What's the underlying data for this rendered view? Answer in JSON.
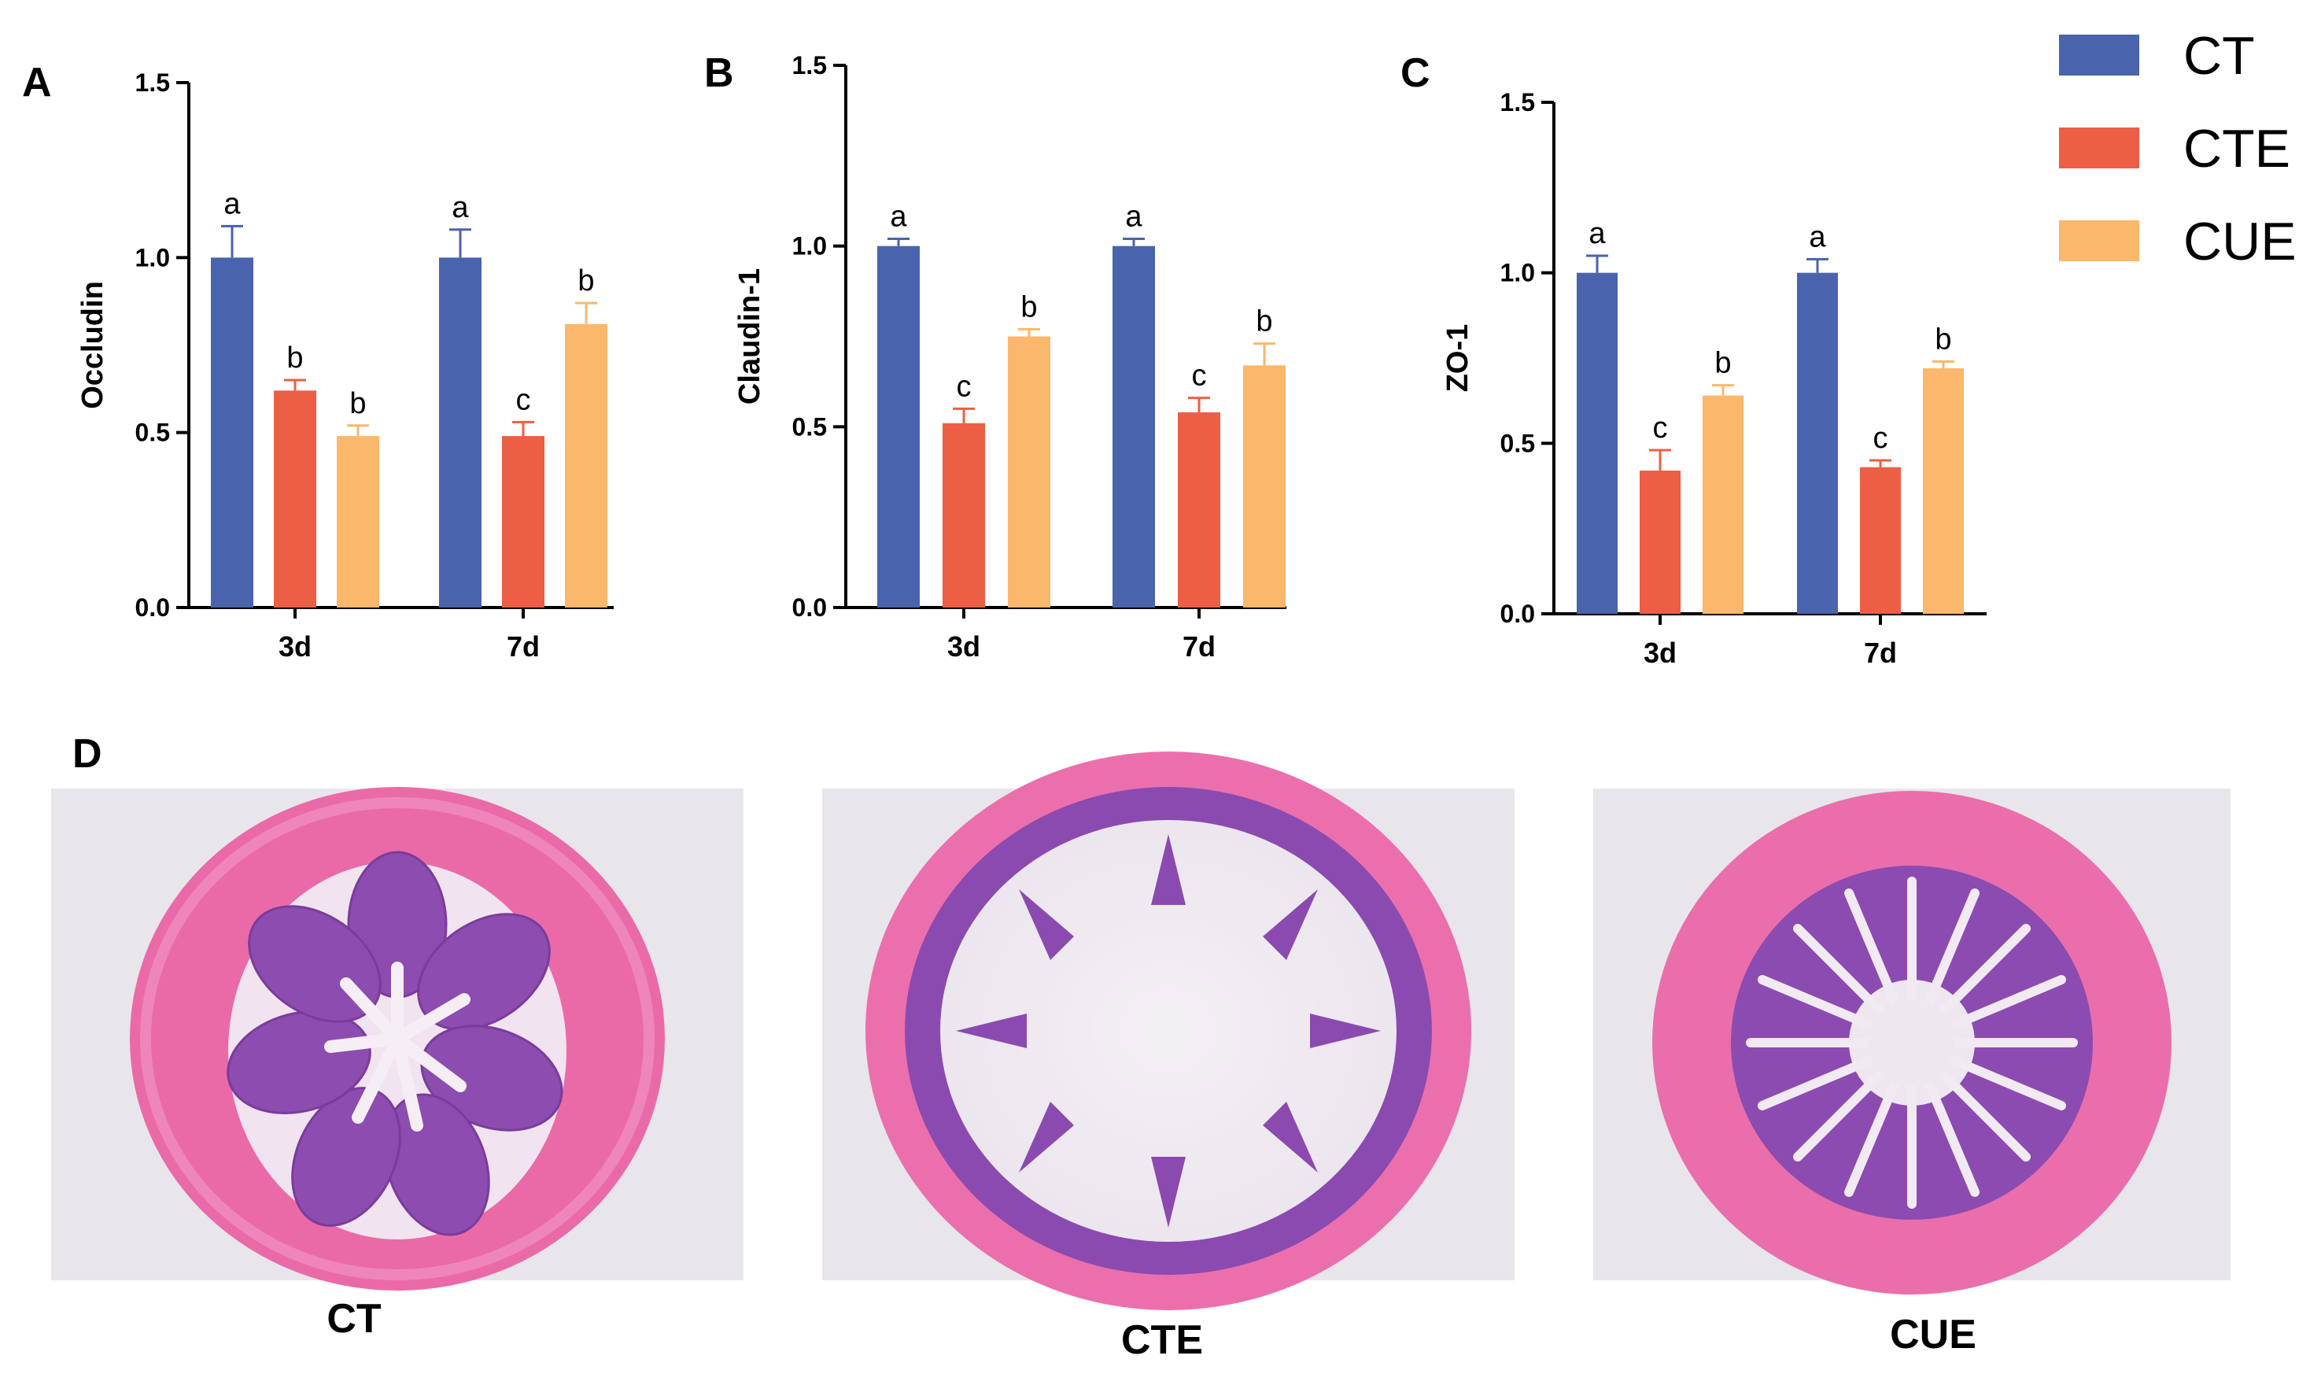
{
  "colors": {
    "CT": "#4a63ad",
    "CTE": "#ec5f45",
    "CUE": "#fbb76b"
  },
  "legend": [
    {
      "key": "CT",
      "label": "CT"
    },
    {
      "key": "CTE",
      "label": "CTE"
    },
    {
      "key": "CUE",
      "label": "CUE"
    }
  ],
  "chart_data": [
    {
      "type": "bar",
      "panel": "A",
      "ylabel": "Occludin",
      "ylim": [
        0,
        1.5
      ],
      "yticks": [
        "0.0",
        "0.5",
        "1.0",
        "1.5"
      ],
      "categories": [
        "3d",
        "7d"
      ],
      "series": [
        {
          "name": "CT",
          "values": [
            1.0,
            1.0
          ],
          "errors": [
            0.09,
            0.08
          ],
          "letters": [
            "a",
            "a"
          ]
        },
        {
          "name": "CTE",
          "values": [
            0.62,
            0.49
          ],
          "errors": [
            0.03,
            0.04
          ],
          "letters": [
            "b",
            "c"
          ]
        },
        {
          "name": "CUE",
          "values": [
            0.49,
            0.81
          ],
          "errors": [
            0.03,
            0.06
          ],
          "letters": [
            "b",
            "b"
          ]
        }
      ]
    },
    {
      "type": "bar",
      "panel": "B",
      "ylabel": "Claudin-1",
      "ylim": [
        0,
        1.5
      ],
      "yticks": [
        "0.0",
        "0.5",
        "1.0",
        "1.5"
      ],
      "categories": [
        "3d",
        "7d"
      ],
      "series": [
        {
          "name": "CT",
          "values": [
            1.0,
            1.0
          ],
          "errors": [
            0.02,
            0.02
          ],
          "letters": [
            "a",
            "a"
          ]
        },
        {
          "name": "CTE",
          "values": [
            0.51,
            0.54
          ],
          "errors": [
            0.04,
            0.04
          ],
          "letters": [
            "c",
            "c"
          ]
        },
        {
          "name": "CUE",
          "values": [
            0.75,
            0.67
          ],
          "errors": [
            0.02,
            0.06
          ],
          "letters": [
            "b",
            "b"
          ]
        }
      ]
    },
    {
      "type": "bar",
      "panel": "C",
      "ylabel": "ZO-1",
      "ylim": [
        0,
        1.5
      ],
      "yticks": [
        "0.0",
        "0.5",
        "1.0",
        "1.5"
      ],
      "categories": [
        "3d",
        "7d"
      ],
      "series": [
        {
          "name": "CT",
          "values": [
            1.0,
            1.0
          ],
          "errors": [
            0.05,
            0.04
          ],
          "letters": [
            "a",
            "a"
          ]
        },
        {
          "name": "CTE",
          "values": [
            0.42,
            0.43
          ],
          "errors": [
            0.06,
            0.02
          ],
          "letters": [
            "c",
            "c"
          ]
        },
        {
          "name": "CUE",
          "values": [
            0.64,
            0.72
          ],
          "errors": [
            0.03,
            0.02
          ],
          "letters": [
            "b",
            "b"
          ]
        }
      ]
    }
  ],
  "histology": {
    "panel": "D",
    "images": [
      {
        "label": "CT"
      },
      {
        "label": "CTE"
      },
      {
        "label": "CUE"
      }
    ]
  }
}
